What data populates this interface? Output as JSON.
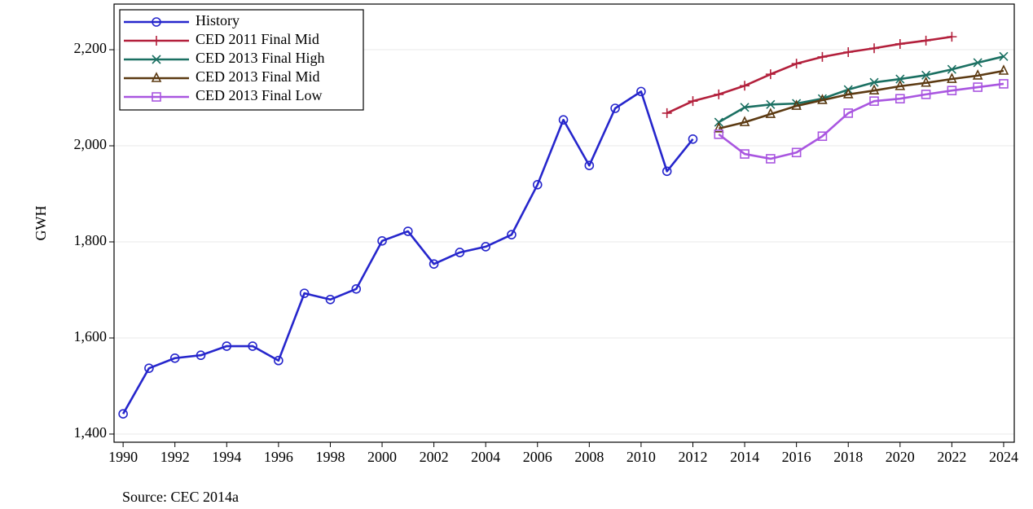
{
  "chart_data": {
    "type": "line",
    "y_label": "GWH",
    "source": "Source: CEC 2014a",
    "x": [
      1990,
      1991,
      1992,
      1993,
      1994,
      1995,
      1996,
      1997,
      1998,
      1999,
      2000,
      2001,
      2002,
      2003,
      2004,
      2005,
      2006,
      2007,
      2008,
      2009,
      2010,
      2011,
      2012,
      2013,
      2014,
      2015,
      2016,
      2017,
      2018,
      2019,
      2020,
      2021,
      2022,
      2023,
      2024
    ],
    "series": [
      {
        "name": "History",
        "color": "#2626cc",
        "marker": "circle",
        "values": [
          1442,
          1537,
          1558,
          1564,
          1583,
          1583,
          1553,
          1693,
          1680,
          1702,
          1802,
          1822,
          1754,
          1778,
          1790,
          1815,
          1919,
          2054,
          1959,
          2078,
          2113,
          1947,
          2014,
          null,
          null,
          null,
          null,
          null,
          null,
          null,
          null,
          null,
          null,
          null,
          null
        ]
      },
      {
        "name": "CED 2011 Final Mid",
        "color": "#b3203c",
        "marker": "plus",
        "values": [
          null,
          null,
          null,
          null,
          null,
          null,
          null,
          null,
          null,
          null,
          null,
          null,
          null,
          null,
          null,
          null,
          null,
          null,
          null,
          null,
          null,
          2068,
          2093,
          2107,
          2125,
          2149,
          2171,
          2185,
          2195,
          2203,
          2212,
          2219,
          2227,
          null,
          null
        ]
      },
      {
        "name": "CED 2013 Final High",
        "color": "#1b7062",
        "marker": "x",
        "values": [
          null,
          null,
          null,
          null,
          null,
          null,
          null,
          null,
          null,
          null,
          null,
          null,
          null,
          null,
          null,
          null,
          null,
          null,
          null,
          null,
          null,
          null,
          null,
          2049,
          2080,
          2086,
          2088,
          2098,
          2117,
          2132,
          2139,
          2147,
          2159,
          2173,
          2186
        ]
      },
      {
        "name": "CED 2013 Final Mid",
        "color": "#5c3a12",
        "marker": "triangle",
        "values": [
          null,
          null,
          null,
          null,
          null,
          null,
          null,
          null,
          null,
          null,
          null,
          null,
          null,
          null,
          null,
          null,
          null,
          null,
          null,
          null,
          null,
          null,
          null,
          2036,
          2049,
          2066,
          2083,
          2095,
          2107,
          2115,
          2124,
          2131,
          2139,
          2146,
          2156
        ]
      },
      {
        "name": "CED 2013 Final Low",
        "color": "#a956e0",
        "marker": "square",
        "values": [
          null,
          null,
          null,
          null,
          null,
          null,
          null,
          null,
          null,
          null,
          null,
          null,
          null,
          null,
          null,
          null,
          null,
          null,
          null,
          null,
          null,
          null,
          null,
          2024,
          1983,
          1973,
          1986,
          2020,
          2068,
          2093,
          2098,
          2107,
          2115,
          2122,
          2129
        ]
      }
    ],
    "xlim": [
      1989.65,
      2024.41
    ],
    "ylim": [
      1383,
      2295
    ],
    "xticks": [
      1990,
      1992,
      1994,
      1996,
      1998,
      2000,
      2002,
      2004,
      2006,
      2008,
      2010,
      2012,
      2014,
      2016,
      2018,
      2020,
      2022,
      2024
    ],
    "yticks": [
      {
        "value": 1400,
        "label": "1,400"
      },
      {
        "value": 1600,
        "label": "1,600"
      },
      {
        "value": 1800,
        "label": "1,800"
      },
      {
        "value": 2000,
        "label": "2,000"
      },
      {
        "value": 2200,
        "label": "2,200"
      }
    ],
    "grid": true,
    "legend": "upper-left"
  }
}
